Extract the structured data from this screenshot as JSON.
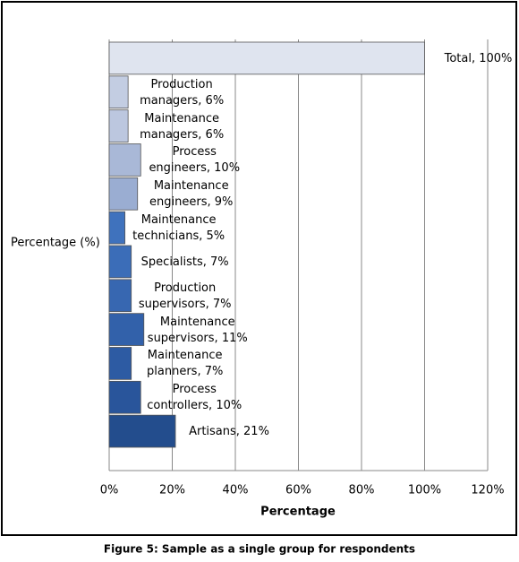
{
  "chart_data": {
    "type": "hbar",
    "values": [
      100,
      6,
      6,
      10,
      9,
      5,
      7,
      7,
      11,
      7,
      10,
      21
    ],
    "value_labels": [
      "Total, 100%",
      "Production managers, 6%",
      "Maintenance managers, 6%",
      "Process engineers, 10%",
      "Maintenance engineers, 9%",
      "Maintenance technicians, 5%",
      "Specialists, 7%",
      "Production supervisors, 7%",
      "Maintenance supervisors, 11%",
      "Maintenance planners, 7%",
      "Process controllers, 10%",
      "Artisans, 21%"
    ],
    "colors": [
      "#dfe4ef",
      "#c3cde2",
      "#bcc7df",
      "#a9b8d7",
      "#9aadd2",
      "#3f72bd",
      "#3b6db8",
      "#3767b1",
      "#3261aa",
      "#2d5ba3",
      "#29559b",
      "#234d8d"
    ],
    "xlim": [
      0,
      120
    ],
    "xticks": [
      {
        "value": 0,
        "label": "0%"
      },
      {
        "value": 20,
        "label": "20%"
      },
      {
        "value": 40,
        "label": "40%"
      },
      {
        "value": 60,
        "label": "60%"
      },
      {
        "value": 80,
        "label": "80%"
      },
      {
        "value": 100,
        "label": "100%"
      },
      {
        "value": 120,
        "label": "120%"
      }
    ],
    "xlabel": "Percentage",
    "ylabel": "Percentage (%)",
    "grid": true,
    "caption": "Figure 5: Sample as a single group for respondents"
  }
}
